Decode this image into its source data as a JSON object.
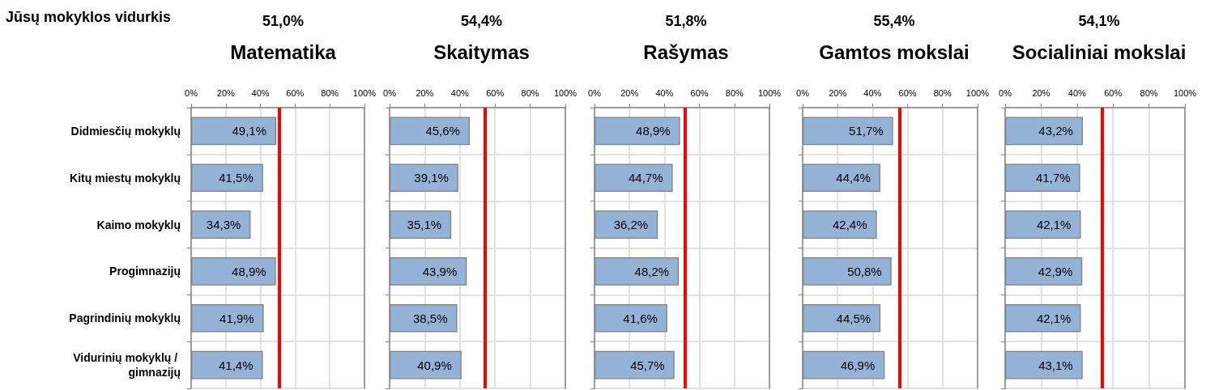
{
  "chart_data": [
    {
      "type": "bar",
      "orientation": "horizontal",
      "title": "Matematika",
      "subtitle": "51,0%",
      "categories": [
        "Didmiesčių mokyklų",
        "Kitų miestų mokyklų",
        "Kaimo mokyklų",
        "Progimnazijų",
        "Pagrindinių mokyklų",
        "Vidurinių mokyklų / gimnazijų"
      ],
      "values": [
        49.1,
        41.5,
        34.3,
        48.9,
        41.9,
        41.4
      ],
      "value_labels": [
        "49,1%",
        "41,5%",
        "34,3%",
        "48,9%",
        "41,9%",
        "41,4%"
      ],
      "color": "#95b3d7",
      "xlim": [
        0,
        100
      ],
      "xticks": [
        {
          "value": 0,
          "label": "0%"
        },
        {
          "value": 20,
          "label": "20%"
        },
        {
          "value": 40,
          "label": "40%"
        },
        {
          "value": 60,
          "label": "60%"
        },
        {
          "value": 80,
          "label": "80%"
        },
        {
          "value": 100,
          "label": "100%"
        }
      ],
      "ref_lines": [
        {
          "axis": "x",
          "value": 51.0,
          "color": "#ff0000"
        }
      ],
      "grid": true,
      "annotations": [
        "Jūsų mokyklos vidurkis"
      ]
    },
    {
      "type": "bar",
      "orientation": "horizontal",
      "title": "Skaitymas",
      "subtitle": "54,4%",
      "categories": [
        "Didmiesčių mokyklų",
        "Kitų miestų mokyklų",
        "Kaimo mokyklų",
        "Progimnazijų",
        "Pagrindinių mokyklų",
        "Vidurinių mokyklų / gimnazijų"
      ],
      "values": [
        45.6,
        39.1,
        35.1,
        43.9,
        38.5,
        40.9
      ],
      "value_labels": [
        "45,6%",
        "39,1%",
        "35,1%",
        "43,9%",
        "38,5%",
        "40,9%"
      ],
      "color": "#95b3d7",
      "xlim": [
        0,
        100
      ],
      "xticks": [
        {
          "value": 0,
          "label": "0%"
        },
        {
          "value": 20,
          "label": "20%"
        },
        {
          "value": 40,
          "label": "40%"
        },
        {
          "value": 60,
          "label": "60%"
        },
        {
          "value": 80,
          "label": "80%"
        },
        {
          "value": 100,
          "label": "100%"
        }
      ],
      "ref_lines": [
        {
          "axis": "x",
          "value": 54.4,
          "color": "#ff0000"
        }
      ],
      "grid": true,
      "tick_labels": "x"
    },
    {
      "type": "bar",
      "orientation": "horizontal",
      "title": "Rašymas",
      "subtitle": "51,8%",
      "categories": [
        "Didmiesčių mokyklų",
        "Kitų miestų mokyklų",
        "Kaimo mokyklų",
        "Progimnazijų",
        "Pagrindinių mokyklų",
        "Vidurinių mokyklų / gimnazijų"
      ],
      "values": [
        48.9,
        44.7,
        36.2,
        48.2,
        41.6,
        45.7
      ],
      "value_labels": [
        "48,9%",
        "44,7%",
        "36,2%",
        "48,2%",
        "41,6%",
        "45,7%"
      ],
      "color": "#95b3d7",
      "xlim": [
        0,
        100
      ],
      "xticks": [
        {
          "value": 0,
          "label": "0%"
        },
        {
          "value": 20,
          "label": "20%"
        },
        {
          "value": 40,
          "label": "40%"
        },
        {
          "value": 60,
          "label": "60%"
        },
        {
          "value": 80,
          "label": "80%"
        },
        {
          "value": 100,
          "label": "100%"
        }
      ],
      "ref_lines": [
        {
          "axis": "x",
          "value": 51.8,
          "color": "#ff0000"
        }
      ],
      "grid": true,
      "tick_labels": "x"
    },
    {
      "type": "bar",
      "orientation": "horizontal",
      "title": "Gamtos mokslai",
      "subtitle": "55,4%",
      "categories": [
        "Didmiesčių mokyklų",
        "Kitų miestų mokyklų",
        "Kaimo mokyklų",
        "Progimnazijų",
        "Pagrindinių mokyklų",
        "Vidurinių mokyklų / gimnazijų"
      ],
      "values": [
        51.7,
        44.4,
        42.4,
        50.8,
        44.5,
        46.9
      ],
      "value_labels": [
        "51,7%",
        "44,4%",
        "42,4%",
        "50,8%",
        "44,5%",
        "46,9%"
      ],
      "color": "#95b3d7",
      "xlim": [
        0,
        100
      ],
      "xticks": [
        {
          "value": 0,
          "label": "0%"
        },
        {
          "value": 20,
          "label": "20%"
        },
        {
          "value": 40,
          "label": "40%"
        },
        {
          "value": 60,
          "label": "60%"
        },
        {
          "value": 80,
          "label": "80%"
        },
        {
          "value": 100,
          "label": "100%"
        }
      ],
      "ref_lines": [
        {
          "axis": "x",
          "value": 55.4,
          "color": "#ff0000"
        }
      ],
      "grid": true,
      "tick_labels": "x"
    },
    {
      "type": "bar",
      "orientation": "horizontal",
      "title": "Socialiniai mokslai",
      "subtitle": "54,1%",
      "categories": [
        "Didmiesčių mokyklų",
        "Kitų miestų mokyklų",
        "Kaimo mokyklų",
        "Progimnazijų",
        "Pagrindinių mokyklų",
        "Vidurinių mokyklų / gimnazijų"
      ],
      "values": [
        43.2,
        41.7,
        42.1,
        42.9,
        42.1,
        43.1
      ],
      "value_labels": [
        "43,2%",
        "41,7%",
        "42,1%",
        "42,9%",
        "42,1%",
        "43,1%"
      ],
      "color": "#95b3d7",
      "xlim": [
        0,
        100
      ],
      "xticks": [
        {
          "value": 0,
          "label": "0%"
        },
        {
          "value": 20,
          "label": "20%"
        },
        {
          "value": 40,
          "label": "40%"
        },
        {
          "value": 60,
          "label": "60%"
        },
        {
          "value": 80,
          "label": "80%"
        },
        {
          "value": 100,
          "label": "100%"
        }
      ],
      "ref_lines": [
        {
          "axis": "x",
          "value": 54.1,
          "color": "#ff0000"
        }
      ],
      "grid": true,
      "tick_labels": "x"
    }
  ]
}
